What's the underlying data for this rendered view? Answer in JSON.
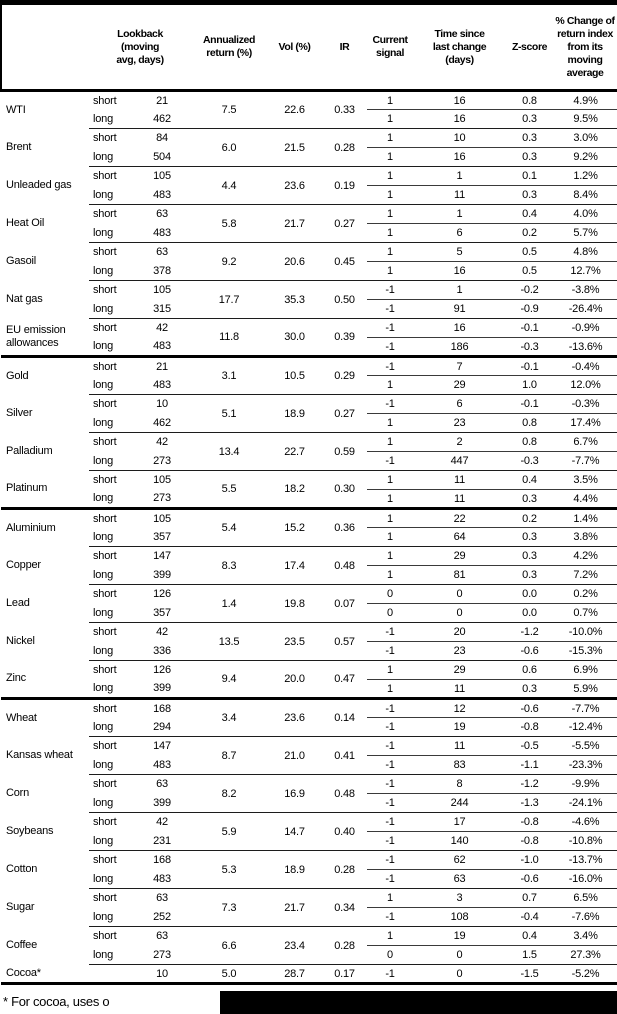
{
  "footnote": {
    "text": "* For cocoa, uses o",
    "redacted": true
  },
  "colors": {
    "background": "#ffffff",
    "text": "#000000",
    "heavy_rule": "#000000",
    "light_rule": "#1c1c1c",
    "redaction_bar": "#000000"
  },
  "chart_data": {
    "type": "table",
    "columns": [
      {
        "key": "name",
        "label": ""
      },
      {
        "key": "lookback",
        "label": "Lookback\n(moving\navg, days)"
      },
      {
        "key": "annualized",
        "label": "Annualized\nreturn (%)"
      },
      {
        "key": "vol",
        "label": "Vol (%)"
      },
      {
        "key": "ir",
        "label": "IR"
      },
      {
        "key": "signal",
        "label": "Current\nsignal"
      },
      {
        "key": "time",
        "label": "Time since\nlast change\n(days)"
      },
      {
        "key": "zscore",
        "label": "Z-score"
      },
      {
        "key": "pct",
        "label": "% Change of\nreturn index\nfrom its\nmoving\naverage"
      }
    ],
    "groups": [
      {
        "name": "energy",
        "commodities": [
          {
            "name": "WTI",
            "annualized": "7.5",
            "vol": "22.6",
            "ir": "0.33",
            "legs": [
              {
                "label": "short",
                "lookback": "21",
                "signal": "1",
                "time": "16",
                "zscore": "0.8",
                "pct": "4.9%"
              },
              {
                "label": "long",
                "lookback": "462",
                "signal": "1",
                "time": "16",
                "zscore": "0.3",
                "pct": "9.5%"
              }
            ]
          },
          {
            "name": "Brent",
            "annualized": "6.0",
            "vol": "21.5",
            "ir": "0.28",
            "legs": [
              {
                "label": "short",
                "lookback": "84",
                "signal": "1",
                "time": "10",
                "zscore": "0.3",
                "pct": "3.0%"
              },
              {
                "label": "long",
                "lookback": "504",
                "signal": "1",
                "time": "16",
                "zscore": "0.3",
                "pct": "9.2%"
              }
            ]
          },
          {
            "name": "Unleaded gas",
            "annualized": "4.4",
            "vol": "23.6",
            "ir": "0.19",
            "legs": [
              {
                "label": "short",
                "lookback": "105",
                "signal": "1",
                "time": "1",
                "zscore": "0.1",
                "pct": "1.2%"
              },
              {
                "label": "long",
                "lookback": "483",
                "signal": "1",
                "time": "11",
                "zscore": "0.3",
                "pct": "8.4%"
              }
            ]
          },
          {
            "name": "Heat Oil",
            "annualized": "5.8",
            "vol": "21.7",
            "ir": "0.27",
            "legs": [
              {
                "label": "short",
                "lookback": "63",
                "signal": "1",
                "time": "1",
                "zscore": "0.4",
                "pct": "4.0%"
              },
              {
                "label": "long",
                "lookback": "483",
                "signal": "1",
                "time": "6",
                "zscore": "0.2",
                "pct": "5.7%"
              }
            ]
          },
          {
            "name": "Gasoil",
            "annualized": "9.2",
            "vol": "20.6",
            "ir": "0.45",
            "legs": [
              {
                "label": "short",
                "lookback": "63",
                "signal": "1",
                "time": "5",
                "zscore": "0.5",
                "pct": "4.8%"
              },
              {
                "label": "long",
                "lookback": "378",
                "signal": "1",
                "time": "16",
                "zscore": "0.5",
                "pct": "12.7%"
              }
            ]
          },
          {
            "name": "Nat gas",
            "annualized": "17.7",
            "vol": "35.3",
            "ir": "0.50",
            "legs": [
              {
                "label": "short",
                "lookback": "105",
                "signal": "-1",
                "time": "1",
                "zscore": "-0.2",
                "pct": "-3.8%"
              },
              {
                "label": "long",
                "lookback": "315",
                "signal": "-1",
                "time": "91",
                "zscore": "-0.9",
                "pct": "-26.4%"
              }
            ]
          },
          {
            "name": "EU emission allowances",
            "annualized": "11.8",
            "vol": "30.0",
            "ir": "0.39",
            "legs": [
              {
                "label": "short",
                "lookback": "42",
                "signal": "-1",
                "time": "16",
                "zscore": "-0.1",
                "pct": "-0.9%"
              },
              {
                "label": "long",
                "lookback": "483",
                "signal": "-1",
                "time": "186",
                "zscore": "-0.3",
                "pct": "-13.6%"
              }
            ]
          }
        ]
      },
      {
        "name": "precious-metals",
        "commodities": [
          {
            "name": "Gold",
            "annualized": "3.1",
            "vol": "10.5",
            "ir": "0.29",
            "legs": [
              {
                "label": "short",
                "lookback": "21",
                "signal": "-1",
                "time": "7",
                "zscore": "-0.1",
                "pct": "-0.4%"
              },
              {
                "label": "long",
                "lookback": "483",
                "signal": "1",
                "time": "29",
                "zscore": "1.0",
                "pct": "12.0%"
              }
            ]
          },
          {
            "name": "Silver",
            "annualized": "5.1",
            "vol": "18.9",
            "ir": "0.27",
            "legs": [
              {
                "label": "short",
                "lookback": "10",
                "signal": "-1",
                "time": "6",
                "zscore": "-0.1",
                "pct": "-0.3%"
              },
              {
                "label": "long",
                "lookback": "462",
                "signal": "1",
                "time": "23",
                "zscore": "0.8",
                "pct": "17.4%"
              }
            ]
          },
          {
            "name": "Palladium",
            "annualized": "13.4",
            "vol": "22.7",
            "ir": "0.59",
            "legs": [
              {
                "label": "short",
                "lookback": "42",
                "signal": "1",
                "time": "2",
                "zscore": "0.8",
                "pct": "6.7%"
              },
              {
                "label": "long",
                "lookback": "273",
                "signal": "-1",
                "time": "447",
                "zscore": "-0.3",
                "pct": "-7.7%"
              }
            ]
          },
          {
            "name": "Platinum",
            "annualized": "5.5",
            "vol": "18.2",
            "ir": "0.30",
            "legs": [
              {
                "label": "short",
                "lookback": "105",
                "signal": "1",
                "time": "11",
                "zscore": "0.4",
                "pct": "3.5%"
              },
              {
                "label": "long",
                "lookback": "273",
                "signal": "1",
                "time": "11",
                "zscore": "0.3",
                "pct": "4.4%"
              }
            ]
          }
        ]
      },
      {
        "name": "base-metals",
        "commodities": [
          {
            "name": "Aluminium",
            "annualized": "5.4",
            "vol": "15.2",
            "ir": "0.36",
            "legs": [
              {
                "label": "short",
                "lookback": "105",
                "signal": "1",
                "time": "22",
                "zscore": "0.2",
                "pct": "1.4%"
              },
              {
                "label": "long",
                "lookback": "357",
                "signal": "1",
                "time": "64",
                "zscore": "0.3",
                "pct": "3.8%"
              }
            ]
          },
          {
            "name": "Copper",
            "annualized": "8.3",
            "vol": "17.4",
            "ir": "0.48",
            "legs": [
              {
                "label": "short",
                "lookback": "147",
                "signal": "1",
                "time": "29",
                "zscore": "0.3",
                "pct": "4.2%"
              },
              {
                "label": "long",
                "lookback": "399",
                "signal": "1",
                "time": "81",
                "zscore": "0.3",
                "pct": "7.2%"
              }
            ]
          },
          {
            "name": "Lead",
            "annualized": "1.4",
            "vol": "19.8",
            "ir": "0.07",
            "legs": [
              {
                "label": "short",
                "lookback": "126",
                "signal": "0",
                "time": "0",
                "zscore": "0.0",
                "pct": "0.2%"
              },
              {
                "label": "long",
                "lookback": "357",
                "signal": "0",
                "time": "0",
                "zscore": "0.0",
                "pct": "0.7%"
              }
            ]
          },
          {
            "name": "Nickel",
            "annualized": "13.5",
            "vol": "23.5",
            "ir": "0.57",
            "legs": [
              {
                "label": "short",
                "lookback": "42",
                "signal": "-1",
                "time": "20",
                "zscore": "-1.2",
                "pct": "-10.0%"
              },
              {
                "label": "long",
                "lookback": "336",
                "signal": "-1",
                "time": "23",
                "zscore": "-0.6",
                "pct": "-15.3%"
              }
            ]
          },
          {
            "name": "Zinc",
            "annualized": "9.4",
            "vol": "20.0",
            "ir": "0.47",
            "legs": [
              {
                "label": "short",
                "lookback": "126",
                "signal": "1",
                "time": "29",
                "zscore": "0.6",
                "pct": "6.9%"
              },
              {
                "label": "long",
                "lookback": "399",
                "signal": "1",
                "time": "11",
                "zscore": "0.3",
                "pct": "5.9%"
              }
            ]
          }
        ]
      },
      {
        "name": "agriculture",
        "commodities": [
          {
            "name": "Wheat",
            "annualized": "3.4",
            "vol": "23.6",
            "ir": "0.14",
            "legs": [
              {
                "label": "short",
                "lookback": "168",
                "signal": "-1",
                "time": "12",
                "zscore": "-0.6",
                "pct": "-7.7%"
              },
              {
                "label": "long",
                "lookback": "294",
                "signal": "-1",
                "time": "19",
                "zscore": "-0.8",
                "pct": "-12.4%"
              }
            ]
          },
          {
            "name": "Kansas wheat",
            "annualized": "8.7",
            "vol": "21.0",
            "ir": "0.41",
            "legs": [
              {
                "label": "short",
                "lookback": "147",
                "signal": "-1",
                "time": "11",
                "zscore": "-0.5",
                "pct": "-5.5%"
              },
              {
                "label": "long",
                "lookback": "483",
                "signal": "-1",
                "time": "83",
                "zscore": "-1.1",
                "pct": "-23.3%"
              }
            ]
          },
          {
            "name": "Corn",
            "annualized": "8.2",
            "vol": "16.9",
            "ir": "0.48",
            "legs": [
              {
                "label": "short",
                "lookback": "63",
                "signal": "-1",
                "time": "8",
                "zscore": "-1.2",
                "pct": "-9.9%"
              },
              {
                "label": "long",
                "lookback": "399",
                "signal": "-1",
                "time": "244",
                "zscore": "-1.3",
                "pct": "-24.1%"
              }
            ]
          },
          {
            "name": "Soybeans",
            "annualized": "5.9",
            "vol": "14.7",
            "ir": "0.40",
            "legs": [
              {
                "label": "short",
                "lookback": "42",
                "signal": "-1",
                "time": "17",
                "zscore": "-0.8",
                "pct": "-4.6%"
              },
              {
                "label": "long",
                "lookback": "231",
                "signal": "-1",
                "time": "140",
                "zscore": "-0.8",
                "pct": "-10.8%"
              }
            ]
          },
          {
            "name": "Cotton",
            "annualized": "5.3",
            "vol": "18.9",
            "ir": "0.28",
            "legs": [
              {
                "label": "short",
                "lookback": "168",
                "signal": "-1",
                "time": "62",
                "zscore": "-1.0",
                "pct": "-13.7%"
              },
              {
                "label": "long",
                "lookback": "483",
                "signal": "-1",
                "time": "63",
                "zscore": "-0.6",
                "pct": "-16.0%"
              }
            ]
          },
          {
            "name": "Sugar",
            "annualized": "7.3",
            "vol": "21.7",
            "ir": "0.34",
            "legs": [
              {
                "label": "short",
                "lookback": "63",
                "signal": "1",
                "time": "3",
                "zscore": "0.7",
                "pct": "6.5%"
              },
              {
                "label": "long",
                "lookback": "252",
                "signal": "-1",
                "time": "108",
                "zscore": "-0.4",
                "pct": "-7.6%"
              }
            ]
          },
          {
            "name": "Coffee",
            "annualized": "6.6",
            "vol": "23.4",
            "ir": "0.28",
            "legs": [
              {
                "label": "short",
                "lookback": "63",
                "signal": "1",
                "time": "19",
                "zscore": "0.4",
                "pct": "3.4%"
              },
              {
                "label": "long",
                "lookback": "273",
                "signal": "0",
                "time": "0",
                "zscore": "1.5",
                "pct": "27.3%"
              }
            ]
          },
          {
            "name": "Cocoa*",
            "annualized": "5.0",
            "vol": "28.7",
            "ir": "0.17",
            "legs": [
              {
                "label": "",
                "lookback": "10",
                "signal": "-1",
                "time": "0",
                "zscore": "-1.5",
                "pct": "-5.2%"
              }
            ]
          }
        ]
      }
    ]
  }
}
